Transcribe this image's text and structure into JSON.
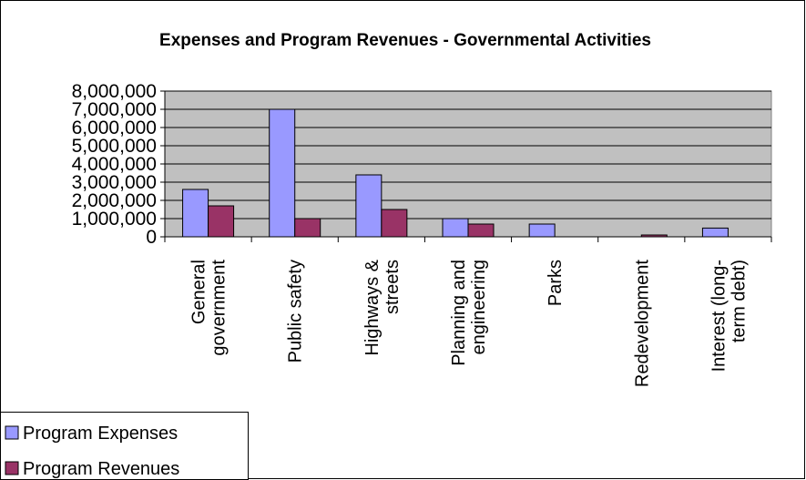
{
  "chart_data": {
    "type": "bar",
    "title": "Expenses and Program Revenues - Governmental Activities",
    "categories": [
      [
        "General",
        "government"
      ],
      [
        "Public safety"
      ],
      [
        "Highways &",
        "streets"
      ],
      [
        "Planning and",
        "engineering"
      ],
      [
        "Parks"
      ],
      [
        "Redevelopment"
      ],
      [
        "Interest (long-",
        "term debt)"
      ]
    ],
    "series": [
      {
        "name": "Program Expenses",
        "color": "#9999ff",
        "values": [
          2600000,
          7000000,
          3400000,
          1000000,
          700000,
          0,
          480000
        ]
      },
      {
        "name": "Program Revenues",
        "color": "#993366",
        "values": [
          1700000,
          1000000,
          1500000,
          700000,
          0,
          100000,
          0
        ]
      }
    ],
    "ylim": [
      0,
      8000000
    ],
    "y_ticks": [
      "0",
      "1,000,000",
      "2,000,000",
      "3,000,000",
      "4,000,000",
      "5,000,000",
      "6,000,000",
      "7,000,000",
      "8,000,000"
    ],
    "plot_background": "#c0c0c0",
    "grid": true,
    "legend_position": "bottom-left"
  }
}
